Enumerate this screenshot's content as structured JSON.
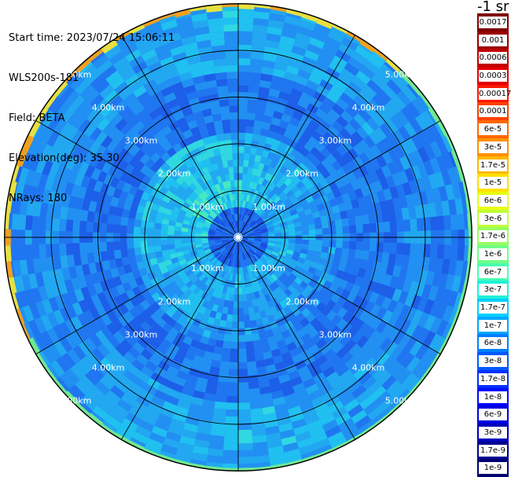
{
  "info": {
    "start_time": "Start time: 2023/07/24 15:06:11",
    "instrument": "WLS200s-181",
    "field": "Field: BETA",
    "elevation": "Elevation(deg): 35.30",
    "nrays": "NRays: 180"
  },
  "colorbar": {
    "unit": "-1 sr",
    "labels": [
      "0.0017",
      "0.001",
      "0.0006",
      "0.0003",
      "0.00017",
      "0.0001",
      "6e-5",
      "3e-5",
      "1.7e-5",
      "1e-5",
      "6e-6",
      "3e-6",
      "1.7e-6",
      "1e-6",
      "6e-7",
      "3e-7",
      "1.7e-7",
      "1e-7",
      "6e-8",
      "3e-8",
      "1.7e-8",
      "1e-8",
      "6e-9",
      "3e-9",
      "1.7e-9",
      "1e-9"
    ],
    "colors": [
      "#7f0000",
      "#9a0000",
      "#c00000",
      "#e00000",
      "#ff1800",
      "#ff4000",
      "#ff6800",
      "#ff9000",
      "#ffb800",
      "#ffe000",
      "#e8ff10",
      "#c0ff38",
      "#98ff60",
      "#70ff88",
      "#48ffb0",
      "#20f0d8",
      "#00d0ff",
      "#00a8ff",
      "#0080ff",
      "#0058ff",
      "#0030ff",
      "#0008ff",
      "#0000e0",
      "#0000b8",
      "#000090",
      "#000070"
    ]
  },
  "chart_data": {
    "type": "heatmap",
    "projection": "polar (PPI scan)",
    "field": "BETA",
    "elevation_deg": 35.3,
    "n_rays": 180,
    "range_rings_km": [
      1,
      2,
      3,
      4,
      5
    ],
    "ring_labels": [
      "1.00km",
      "2.00km",
      "3.00km",
      "4.00km",
      "5.00km"
    ],
    "radial_lines": 12,
    "colorscale": "log",
    "value_range": [
      1e-09,
      0.0017
    ],
    "colors": {
      "background": "#ffffff",
      "grid": "#000000",
      "field_low": "#1d5fe8",
      "field_mid": "#1fb0f0",
      "field_high": "#3fe8c0",
      "edge": "#f0a020"
    }
  }
}
